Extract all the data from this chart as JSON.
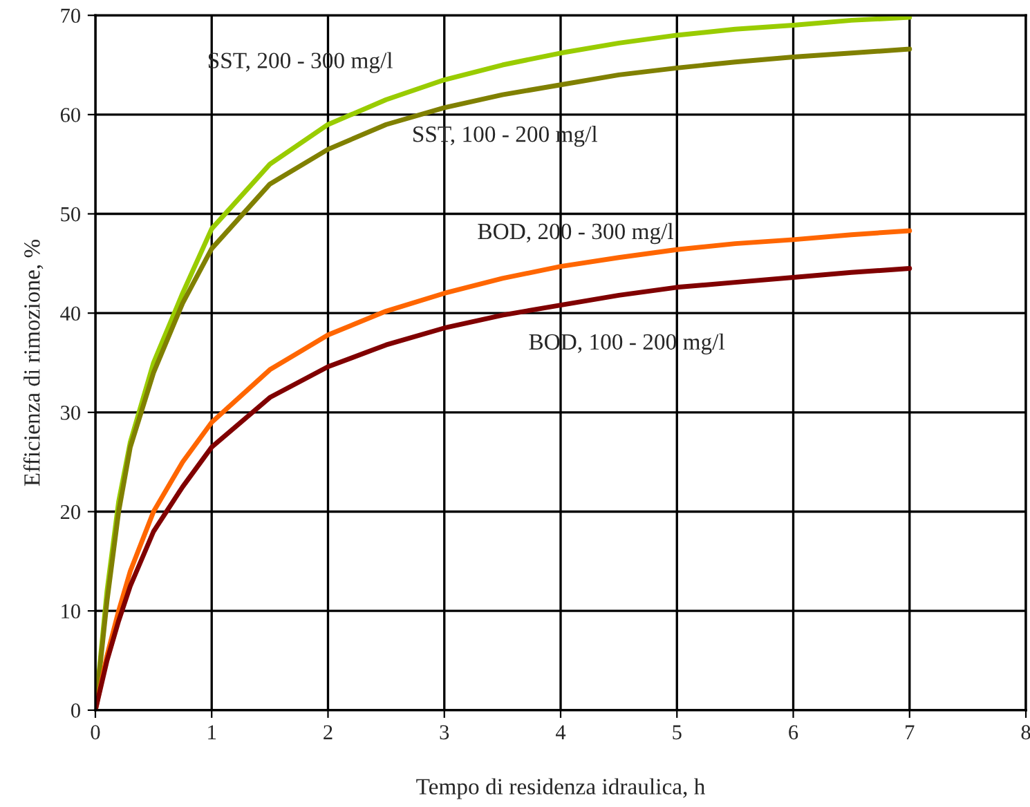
{
  "chart_data": {
    "type": "line",
    "xlabel": "Tempo di residenza idraulica, h",
    "ylabel": "Efficienza di rimozione, %",
    "x": [
      0,
      0.1,
      0.2,
      0.3,
      0.5,
      0.75,
      1,
      1.5,
      2,
      2.5,
      3,
      3.5,
      4,
      4.5,
      5,
      5.5,
      6,
      6.5,
      7
    ],
    "series": [
      {
        "name": "SST, 200 - 300 mg/l",
        "color": "#99cc00",
        "values": [
          0,
          12,
          21,
          27,
          35,
          42,
          48.5,
          55,
          59,
          61.5,
          63.5,
          65,
          66.2,
          67.2,
          68,
          68.6,
          69,
          69.5,
          69.8
        ]
      },
      {
        "name": "SST, 100 - 200 mg/l",
        "color": "#808000",
        "values": [
          0,
          11,
          20,
          26.5,
          34,
          41,
          46.5,
          53,
          56.5,
          59,
          60.7,
          62,
          63,
          64,
          64.7,
          65.3,
          65.8,
          66.2,
          66.6
        ]
      },
      {
        "name": "BOD, 200 - 300 mg/l",
        "color": "#ff6600",
        "values": [
          0,
          5.5,
          10,
          14,
          20,
          25,
          29,
          34.3,
          37.8,
          40.2,
          42,
          43.5,
          44.7,
          45.6,
          46.4,
          47,
          47.4,
          47.9,
          48.3
        ]
      },
      {
        "name": "BOD, 100 - 200 mg/l",
        "color": "#800000",
        "values": [
          0,
          5,
          9,
          12.5,
          18,
          22.5,
          26.5,
          31.5,
          34.6,
          36.8,
          38.5,
          39.8,
          40.8,
          41.8,
          42.6,
          43.1,
          43.6,
          44.1,
          44.5
        ]
      }
    ],
    "xlim": [
      0,
      8
    ],
    "xticks": [
      0,
      1,
      2,
      3,
      4,
      5,
      6,
      7,
      8
    ],
    "ylim": [
      0,
      70
    ],
    "yticks": [
      0,
      10,
      20,
      30,
      40,
      50,
      60,
      70
    ],
    "grid": true,
    "marker": "none",
    "line_style": "solid"
  }
}
